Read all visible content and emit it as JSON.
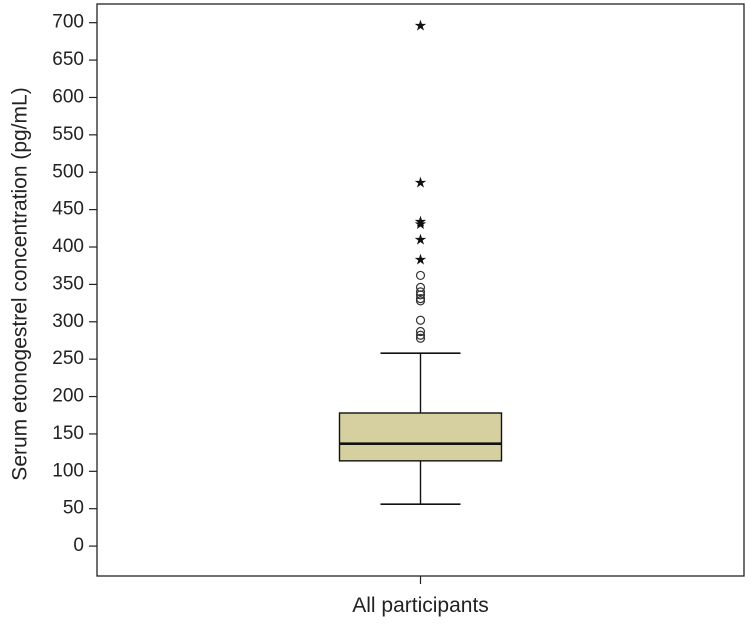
{
  "chart_data": {
    "type": "box",
    "xlabel": "",
    "ylabel": "Serum etonogestrel concentration (pg/mL)",
    "ylim": [
      -40,
      725
    ],
    "y_ticks": [
      0,
      50,
      100,
      150,
      200,
      250,
      300,
      350,
      400,
      450,
      500,
      550,
      600,
      650,
      700
    ],
    "categories": [
      "All participants"
    ],
    "colors": {
      "box_fill": "#d6d0a0",
      "stroke": "#111111"
    },
    "boxes": [
      {
        "category": "All participants",
        "whisker_low": 56,
        "q1": 114,
        "median": 137,
        "q3": 178,
        "whisker_high": 258,
        "outliers": [
          278,
          282,
          287,
          302,
          328,
          331,
          336,
          340,
          346,
          362
        ],
        "extremes": [
          383,
          410,
          431,
          434,
          486,
          696
        ]
      }
    ],
    "markers": {
      "outlier": "circle",
      "extreme": "star"
    }
  }
}
